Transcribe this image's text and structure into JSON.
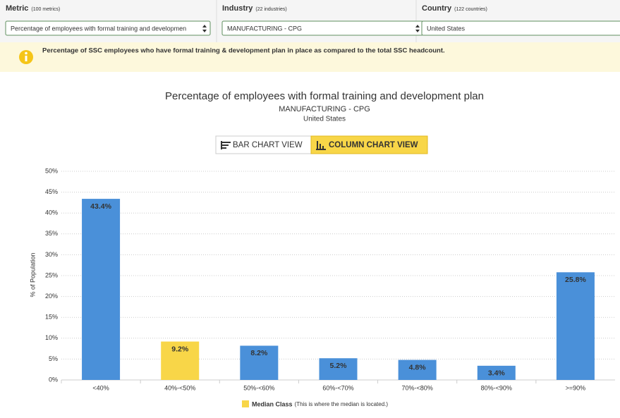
{
  "filters": [
    {
      "label": "Metric",
      "count": "(100 metrics)",
      "value": "Percentage of employees with formal training and developmen"
    },
    {
      "label": "Industry",
      "count": "(22 industries)",
      "value": "MANUFACTURING - CPG"
    },
    {
      "label": "Country",
      "count": "(122 countries)",
      "value": "United States"
    }
  ],
  "info": "Percentage of SSC employees who have formal training & development plan in place as compared to the total SSC headcount.",
  "view_buttons": [
    "BAR CHART VIEW",
    "COLUMN CHART VIEW"
  ],
  "chart_data": {
    "type": "bar",
    "title": "Percentage of employees with formal training and development plan",
    "subtitle": "MANUFACTURING - CPG",
    "subtitle2": "United States",
    "ylabel": "% of Population",
    "categories": [
      "<40%",
      "40%-<50%",
      "50%-<60%",
      "60%-<70%",
      "70%-<80%",
      "80%-<90%",
      ">=90%"
    ],
    "values": [
      43.4,
      9.2,
      8.2,
      5.2,
      4.8,
      3.4,
      25.8
    ],
    "value_labels": [
      "43.4%",
      "9.2%",
      "8.2%",
      "5.2%",
      "4.8%",
      "3.4%",
      "25.8%"
    ],
    "colors": [
      "#4a90d9",
      "#f8d648",
      "#4a90d9",
      "#4a90d9",
      "#4a90d9",
      "#4a90d9",
      "#4a90d9"
    ],
    "ylim": [
      0,
      50
    ],
    "yticks": [
      {
        "value": 0,
        "label": "0%"
      },
      {
        "value": 5,
        "label": "5%"
      },
      {
        "value": 10,
        "label": "10%"
      },
      {
        "value": 15,
        "label": "15%"
      },
      {
        "value": 20,
        "label": "20%"
      },
      {
        "value": 25,
        "label": "25%"
      },
      {
        "value": 30,
        "label": "30%"
      },
      {
        "value": 35,
        "label": "35%"
      },
      {
        "value": 40,
        "label": "40%"
      },
      {
        "value": 45,
        "label": "45%"
      },
      {
        "value": 50,
        "label": "50%"
      }
    ],
    "grid": true,
    "legend": {
      "name": "Median Class",
      "note": "(This is where the median is located.)",
      "color": "#f8d648"
    }
  }
}
